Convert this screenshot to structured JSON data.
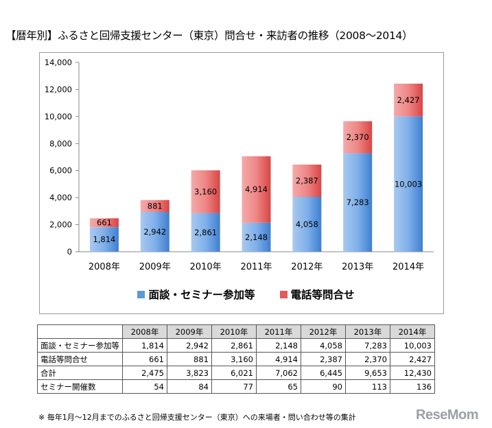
{
  "title": "【暦年別】ふるさと回帰支援センター（東京）問合せ・来訪者の推移（2008～2014）",
  "chart_data": {
    "type": "bar",
    "stacked": true,
    "categories": [
      "2008年",
      "2009年",
      "2010年",
      "2011年",
      "2012年",
      "2013年",
      "2014年"
    ],
    "series": [
      {
        "name": "面談・セミナー参加等",
        "values": [
          1814,
          2942,
          2861,
          2148,
          4058,
          7283,
          10003
        ],
        "labels": [
          "1,814",
          "2,942",
          "2,861",
          "2,148",
          "4,058",
          "7,283",
          "10,003"
        ],
        "color": "#5b9bd5"
      },
      {
        "name": "電話等問合せ",
        "values": [
          661,
          881,
          3160,
          4914,
          2387,
          2370,
          2427
        ],
        "labels": [
          "661",
          "881",
          "3,160",
          "4,914",
          "2,387",
          "2,370",
          "2,427"
        ],
        "color": "#e05c5c"
      }
    ],
    "ylim": [
      0,
      14000
    ],
    "yticks": [
      0,
      2000,
      4000,
      6000,
      8000,
      10000,
      12000,
      14000
    ],
    "ytick_labels": [
      "0",
      "2,000",
      "4,000",
      "6,000",
      "8,000",
      "10,000",
      "12,000",
      "14,000"
    ],
    "legend_position": "bottom",
    "grid": false
  },
  "table": {
    "headers": [
      "2008年",
      "2009年",
      "2010年",
      "2011年",
      "2012年",
      "2013年",
      "2014年"
    ],
    "rows": [
      {
        "label": "面談・セミナー参加等",
        "values": [
          "1,814",
          "2,942",
          "2,861",
          "2,148",
          "4,058",
          "7,283",
          "10,003"
        ]
      },
      {
        "label": "電話等問合せ",
        "values": [
          "661",
          "881",
          "3,160",
          "4,914",
          "2,387",
          "2,370",
          "2,427"
        ]
      },
      {
        "label": "合計",
        "values": [
          "2,475",
          "3,823",
          "6,021",
          "7,062",
          "6,445",
          "9,653",
          "12,430"
        ]
      },
      {
        "label": "セミナー開催数",
        "values": [
          "54",
          "84",
          "77",
          "65",
          "90",
          "113",
          "136"
        ]
      }
    ]
  },
  "footnote": "※ 毎年1月～12月までのふるさと回帰支援センター（東京）への来場者・問い合わせ等の集計",
  "logo": "ReseMom"
}
